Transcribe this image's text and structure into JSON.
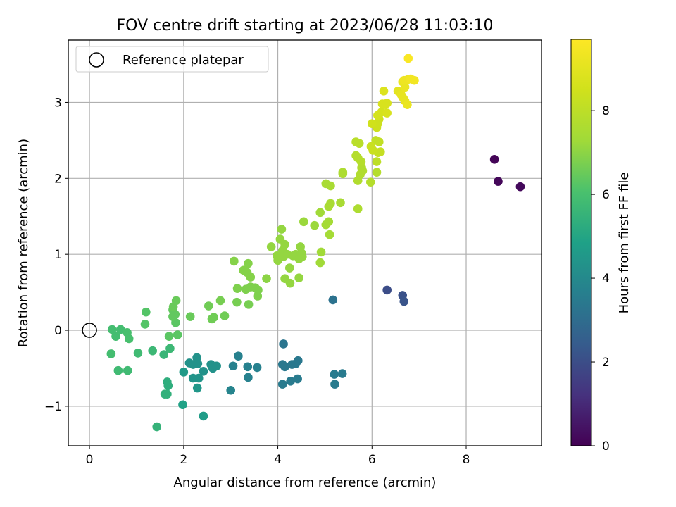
{
  "chart_data": {
    "type": "scatter",
    "title": "FOV centre drift starting at 2023/06/28 11:03:10",
    "xlabel": "Angular distance from reference (arcmin)",
    "ylabel": "Rotation from reference (arcmin)",
    "xlim": [
      -0.45,
      9.6
    ],
    "ylim": [
      -1.52,
      3.82
    ],
    "xticks": [
      0,
      2,
      4,
      6,
      8
    ],
    "yticks": [
      -1,
      0,
      1,
      2,
      3
    ],
    "xtick_labels": [
      "0",
      "2",
      "4",
      "6",
      "8"
    ],
    "ytick_labels": [
      "−1",
      "0",
      "1",
      "2",
      "3"
    ],
    "grid": true,
    "legend": {
      "label": "Reference platepar",
      "position": "top-left"
    },
    "reference_point": {
      "x": 0,
      "y": 0
    },
    "colorbar": {
      "label": "Hours from first FF file",
      "range": [
        0,
        9.7
      ],
      "ticks": [
        0,
        2,
        4,
        6,
        8
      ],
      "tick_labels": [
        "0",
        "2",
        "4",
        "6",
        "8"
      ],
      "colormap": "viridis"
    },
    "points": [
      {
        "x": 8.6,
        "y": 2.25,
        "c": 0.1
      },
      {
        "x": 8.68,
        "y": 1.96,
        "c": 0.15
      },
      {
        "x": 9.15,
        "y": 1.89,
        "c": 0.2
      },
      {
        "x": 6.32,
        "y": 0.53,
        "c": 2.0
      },
      {
        "x": 6.65,
        "y": 0.46,
        "c": 2.1
      },
      {
        "x": 6.68,
        "y": 0.38,
        "c": 2.2
      },
      {
        "x": 5.17,
        "y": 0.4,
        "c": 3.2
      },
      {
        "x": 4.12,
        "y": -0.18,
        "c": 3.3
      },
      {
        "x": 4.1,
        "y": -0.45,
        "c": 3.4
      },
      {
        "x": 4.15,
        "y": -0.48,
        "c": 3.4
      },
      {
        "x": 4.3,
        "y": -0.45,
        "c": 3.4
      },
      {
        "x": 4.38,
        "y": -0.44,
        "c": 3.4
      },
      {
        "x": 4.43,
        "y": -0.4,
        "c": 3.4
      },
      {
        "x": 4.1,
        "y": -0.71,
        "c": 3.5
      },
      {
        "x": 4.27,
        "y": -0.67,
        "c": 3.5
      },
      {
        "x": 4.42,
        "y": -0.64,
        "c": 3.5
      },
      {
        "x": 5.2,
        "y": -0.58,
        "c": 3.5
      },
      {
        "x": 5.37,
        "y": -0.57,
        "c": 3.5
      },
      {
        "x": 5.21,
        "y": -0.71,
        "c": 3.5
      },
      {
        "x": 3.16,
        "y": -0.34,
        "c": 3.7
      },
      {
        "x": 3.05,
        "y": -0.47,
        "c": 3.7
      },
      {
        "x": 3.36,
        "y": -0.48,
        "c": 3.7
      },
      {
        "x": 3.56,
        "y": -0.49,
        "c": 3.7
      },
      {
        "x": 3.37,
        "y": -0.62,
        "c": 3.7
      },
      {
        "x": 3.0,
        "y": -0.79,
        "c": 3.8
      },
      {
        "x": 2.28,
        "y": -0.36,
        "c": 4.3
      },
      {
        "x": 2.3,
        "y": -0.44,
        "c": 4.3
      },
      {
        "x": 2.12,
        "y": -0.43,
        "c": 4.3
      },
      {
        "x": 2.2,
        "y": -0.45,
        "c": 4.3
      },
      {
        "x": 2.58,
        "y": -0.45,
        "c": 4.3
      },
      {
        "x": 2.62,
        "y": -0.5,
        "c": 4.3
      },
      {
        "x": 2.7,
        "y": -0.47,
        "c": 4.3
      },
      {
        "x": 2.42,
        "y": -0.54,
        "c": 4.3
      },
      {
        "x": 2.2,
        "y": -0.63,
        "c": 4.4
      },
      {
        "x": 2.32,
        "y": -0.63,
        "c": 4.4
      },
      {
        "x": 2.29,
        "y": -0.76,
        "c": 4.5
      },
      {
        "x": 2.0,
        "y": -0.55,
        "c": 4.6
      },
      {
        "x": 2.42,
        "y": -1.13,
        "c": 4.7
      },
      {
        "x": 1.98,
        "y": -0.98,
        "c": 4.9
      },
      {
        "x": 1.65,
        "y": -0.68,
        "c": 5.3
      },
      {
        "x": 1.67,
        "y": -0.73,
        "c": 5.3
      },
      {
        "x": 1.6,
        "y": -0.84,
        "c": 5.4
      },
      {
        "x": 1.65,
        "y": -0.84,
        "c": 5.4
      },
      {
        "x": 1.43,
        "y": -1.27,
        "c": 5.5
      },
      {
        "x": 1.58,
        "y": -0.32,
        "c": 5.6
      },
      {
        "x": 1.71,
        "y": -0.24,
        "c": 5.7
      },
      {
        "x": 1.34,
        "y": -0.27,
        "c": 5.7
      },
      {
        "x": 1.03,
        "y": -0.3,
        "c": 5.8
      },
      {
        "x": 0.61,
        "y": -0.53,
        "c": 5.8
      },
      {
        "x": 0.81,
        "y": -0.53,
        "c": 5.8
      },
      {
        "x": 0.46,
        "y": -0.31,
        "c": 5.9
      },
      {
        "x": 0.48,
        "y": 0.01,
        "c": 5.9
      },
      {
        "x": 0.56,
        "y": -0.08,
        "c": 5.9
      },
      {
        "x": 0.66,
        "y": 0.01,
        "c": 5.9
      },
      {
        "x": 0.8,
        "y": -0.03,
        "c": 6.0
      },
      {
        "x": 0.84,
        "y": -0.11,
        "c": 6.0
      },
      {
        "x": 1.2,
        "y": 0.24,
        "c": 6.2
      },
      {
        "x": 1.18,
        "y": 0.08,
        "c": 6.2
      },
      {
        "x": 1.69,
        "y": -0.08,
        "c": 6.3
      },
      {
        "x": 1.87,
        "y": -0.06,
        "c": 6.3
      },
      {
        "x": 1.83,
        "y": 0.1,
        "c": 6.3
      },
      {
        "x": 1.77,
        "y": 0.18,
        "c": 6.4
      },
      {
        "x": 1.77,
        "y": 0.27,
        "c": 6.4
      },
      {
        "x": 1.82,
        "y": 0.21,
        "c": 6.4
      },
      {
        "x": 1.78,
        "y": 0.31,
        "c": 6.5
      },
      {
        "x": 1.84,
        "y": 0.39,
        "c": 6.5
      },
      {
        "x": 2.14,
        "y": 0.18,
        "c": 6.5
      },
      {
        "x": 2.6,
        "y": 0.15,
        "c": 6.6
      },
      {
        "x": 2.64,
        "y": 0.17,
        "c": 6.6
      },
      {
        "x": 2.87,
        "y": 0.19,
        "c": 6.6
      },
      {
        "x": 2.53,
        "y": 0.32,
        "c": 6.6
      },
      {
        "x": 2.78,
        "y": 0.39,
        "c": 6.7
      },
      {
        "x": 3.13,
        "y": 0.37,
        "c": 6.7
      },
      {
        "x": 3.38,
        "y": 0.34,
        "c": 6.7
      },
      {
        "x": 3.14,
        "y": 0.55,
        "c": 6.8
      },
      {
        "x": 3.32,
        "y": 0.54,
        "c": 6.8
      },
      {
        "x": 3.42,
        "y": 0.57,
        "c": 6.8
      },
      {
        "x": 3.52,
        "y": 0.56,
        "c": 6.8
      },
      {
        "x": 3.58,
        "y": 0.53,
        "c": 6.8
      },
      {
        "x": 3.57,
        "y": 0.45,
        "c": 6.8
      },
      {
        "x": 3.07,
        "y": 0.91,
        "c": 6.9
      },
      {
        "x": 3.27,
        "y": 0.79,
        "c": 6.9
      },
      {
        "x": 3.35,
        "y": 0.76,
        "c": 6.9
      },
      {
        "x": 3.42,
        "y": 0.7,
        "c": 6.9
      },
      {
        "x": 3.37,
        "y": 0.88,
        "c": 6.9
      },
      {
        "x": 3.76,
        "y": 0.68,
        "c": 7.0
      },
      {
        "x": 3.86,
        "y": 1.1,
        "c": 7.1
      },
      {
        "x": 3.98,
        "y": 0.98,
        "c": 7.1
      },
      {
        "x": 4.0,
        "y": 0.92,
        "c": 7.1
      },
      {
        "x": 4.05,
        "y": 1.2,
        "c": 7.1
      },
      {
        "x": 4.08,
        "y": 1.33,
        "c": 7.1
      },
      {
        "x": 4.1,
        "y": 1.05,
        "c": 7.1
      },
      {
        "x": 4.12,
        "y": 0.97,
        "c": 7.1
      },
      {
        "x": 4.15,
        "y": 1.13,
        "c": 7.1
      },
      {
        "x": 4.2,
        "y": 1.0,
        "c": 7.1
      },
      {
        "x": 4.25,
        "y": 0.82,
        "c": 7.1
      },
      {
        "x": 4.32,
        "y": 0.98,
        "c": 7.1
      },
      {
        "x": 4.38,
        "y": 1.0,
        "c": 7.1
      },
      {
        "x": 4.45,
        "y": 0.94,
        "c": 7.1
      },
      {
        "x": 4.48,
        "y": 1.1,
        "c": 7.1
      },
      {
        "x": 4.52,
        "y": 0.97,
        "c": 7.1
      },
      {
        "x": 4.15,
        "y": 0.68,
        "c": 7.1
      },
      {
        "x": 4.26,
        "y": 0.62,
        "c": 7.1
      },
      {
        "x": 4.45,
        "y": 0.69,
        "c": 7.1
      },
      {
        "x": 4.5,
        "y": 1.02,
        "c": 7.1
      },
      {
        "x": 4.55,
        "y": 1.43,
        "c": 7.2
      },
      {
        "x": 4.78,
        "y": 1.38,
        "c": 7.2
      },
      {
        "x": 4.9,
        "y": 1.55,
        "c": 7.3
      },
      {
        "x": 4.92,
        "y": 1.03,
        "c": 7.3
      },
      {
        "x": 4.9,
        "y": 0.89,
        "c": 7.3
      },
      {
        "x": 5.02,
        "y": 1.39,
        "c": 7.4
      },
      {
        "x": 5.08,
        "y": 1.43,
        "c": 7.4
      },
      {
        "x": 5.1,
        "y": 1.26,
        "c": 7.4
      },
      {
        "x": 5.02,
        "y": 1.93,
        "c": 7.5
      },
      {
        "x": 5.12,
        "y": 1.9,
        "c": 7.5
      },
      {
        "x": 5.08,
        "y": 1.63,
        "c": 7.5
      },
      {
        "x": 5.12,
        "y": 1.67,
        "c": 7.5
      },
      {
        "x": 5.33,
        "y": 1.68,
        "c": 7.5
      },
      {
        "x": 5.38,
        "y": 2.06,
        "c": 7.6
      },
      {
        "x": 5.38,
        "y": 2.08,
        "c": 7.6
      },
      {
        "x": 5.7,
        "y": 1.6,
        "c": 7.6
      },
      {
        "x": 5.7,
        "y": 1.97,
        "c": 7.7
      },
      {
        "x": 5.75,
        "y": 2.05,
        "c": 7.7
      },
      {
        "x": 5.78,
        "y": 2.14,
        "c": 7.7
      },
      {
        "x": 5.8,
        "y": 2.1,
        "c": 7.7
      },
      {
        "x": 5.66,
        "y": 2.3,
        "c": 7.8
      },
      {
        "x": 5.7,
        "y": 2.27,
        "c": 7.8
      },
      {
        "x": 5.77,
        "y": 2.22,
        "c": 7.8
      },
      {
        "x": 5.97,
        "y": 1.95,
        "c": 7.8
      },
      {
        "x": 6.1,
        "y": 2.08,
        "c": 7.8
      },
      {
        "x": 5.66,
        "y": 2.48,
        "c": 7.9
      },
      {
        "x": 5.73,
        "y": 2.46,
        "c": 7.9
      },
      {
        "x": 6.1,
        "y": 2.22,
        "c": 8.0
      },
      {
        "x": 6.08,
        "y": 2.5,
        "c": 8.1
      },
      {
        "x": 6.15,
        "y": 2.48,
        "c": 8.1
      },
      {
        "x": 6.13,
        "y": 2.34,
        "c": 8.2
      },
      {
        "x": 6.18,
        "y": 2.35,
        "c": 8.2
      },
      {
        "x": 5.98,
        "y": 2.42,
        "c": 8.3
      },
      {
        "x": 6.02,
        "y": 2.37,
        "c": 8.3
      },
      {
        "x": 6.1,
        "y": 2.67,
        "c": 8.4
      },
      {
        "x": 6.12,
        "y": 2.72,
        "c": 8.4
      },
      {
        "x": 6.15,
        "y": 2.78,
        "c": 8.4
      },
      {
        "x": 6.0,
        "y": 2.72,
        "c": 8.5
      },
      {
        "x": 6.12,
        "y": 2.83,
        "c": 8.6
      },
      {
        "x": 6.2,
        "y": 2.87,
        "c": 8.6
      },
      {
        "x": 6.22,
        "y": 2.98,
        "c": 8.7
      },
      {
        "x": 6.28,
        "y": 2.97,
        "c": 8.7
      },
      {
        "x": 6.32,
        "y": 2.86,
        "c": 8.7
      },
      {
        "x": 6.32,
        "y": 2.99,
        "c": 8.7
      },
      {
        "x": 6.25,
        "y": 3.15,
        "c": 8.8
      },
      {
        "x": 6.55,
        "y": 3.15,
        "c": 9.0
      },
      {
        "x": 6.62,
        "y": 3.1,
        "c": 9.1
      },
      {
        "x": 6.67,
        "y": 3.05,
        "c": 9.1
      },
      {
        "x": 6.7,
        "y": 3.02,
        "c": 9.1
      },
      {
        "x": 6.65,
        "y": 3.27,
        "c": 9.2
      },
      {
        "x": 6.7,
        "y": 3.2,
        "c": 9.2
      },
      {
        "x": 6.75,
        "y": 2.97,
        "c": 9.2
      },
      {
        "x": 6.68,
        "y": 3.29,
        "c": 9.3
      },
      {
        "x": 6.76,
        "y": 3.3,
        "c": 9.3
      },
      {
        "x": 6.82,
        "y": 3.31,
        "c": 9.4
      },
      {
        "x": 6.9,
        "y": 3.29,
        "c": 9.4
      },
      {
        "x": 6.77,
        "y": 3.58,
        "c": 9.6
      }
    ]
  }
}
